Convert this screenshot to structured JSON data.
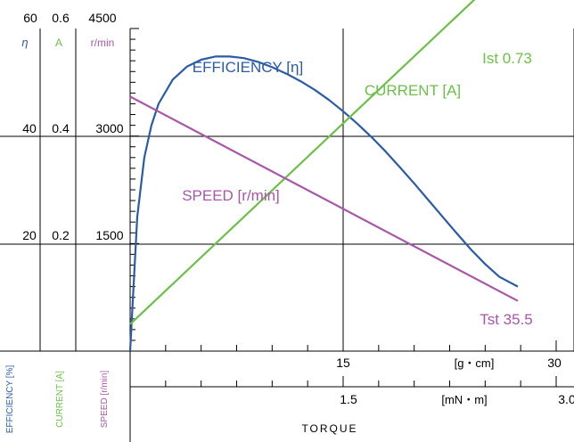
{
  "colors": {
    "efficiency": "#2b5ba8",
    "current": "#6cc04a",
    "speed": "#a957a8",
    "axis": "#000000"
  },
  "axes": {
    "efficiency": {
      "ticks": [
        "60",
        "40",
        "20"
      ],
      "unit": "η",
      "label": "EFFICIENCY [%]",
      "range": [
        0,
        60
      ]
    },
    "current": {
      "ticks": [
        "0.6",
        "0.4",
        "0.2"
      ],
      "unit": "A",
      "label": "CURRENT [A]",
      "range": [
        0,
        0.6
      ]
    },
    "speed": {
      "ticks": [
        "4500",
        "3000",
        "1500"
      ],
      "unit": "r/min",
      "label": "SPEED [r/min]",
      "range": [
        0,
        4500
      ]
    },
    "torque_gcm": {
      "ticks": [
        "15",
        "30"
      ],
      "unit": "[g・cm]",
      "range": [
        0,
        30
      ]
    },
    "torque_mnm": {
      "ticks": [
        "1.5",
        "3.0"
      ],
      "unit": "[mN・m]",
      "range": [
        0,
        3.0
      ]
    },
    "xlabel": "TORQUE"
  },
  "chart_data": {
    "type": "line",
    "xlabel": "TORQUE",
    "x_unit": "g・cm",
    "xlim": [
      0,
      30
    ],
    "grid": true,
    "series": [
      {
        "name": "EFFICIENCY [η]",
        "axis": "efficiency",
        "x": [
          0,
          0.5,
          1,
          1.5,
          2,
          3,
          4,
          5,
          6,
          7,
          8,
          9,
          10,
          11,
          12,
          13,
          14,
          15,
          16,
          17,
          18,
          19,
          20,
          21,
          22,
          23,
          24,
          25,
          26,
          27.3
        ],
        "values": [
          0,
          25,
          36,
          42,
          46,
          50.5,
          52.9,
          54.2,
          54.8,
          54.8,
          54.5,
          53.8,
          52.8,
          51.6,
          50.2,
          48.6,
          46.7,
          44.6,
          42.3,
          39.8,
          37.1,
          34.2,
          31.2,
          28.1,
          25,
          21.9,
          18.9,
          16.2,
          13.8,
          12
        ]
      },
      {
        "name": "CURRENT [A]",
        "axis": "current",
        "x": [
          0,
          27.3
        ],
        "values": [
          0.05,
          0.73
        ]
      },
      {
        "name": "SPEED [r/min]",
        "axis": "speed",
        "x": [
          0,
          27.3
        ],
        "values": [
          3550,
          700
        ]
      }
    ],
    "annotations": [
      "Ist 0.73",
      "Tst 35.5"
    ]
  }
}
